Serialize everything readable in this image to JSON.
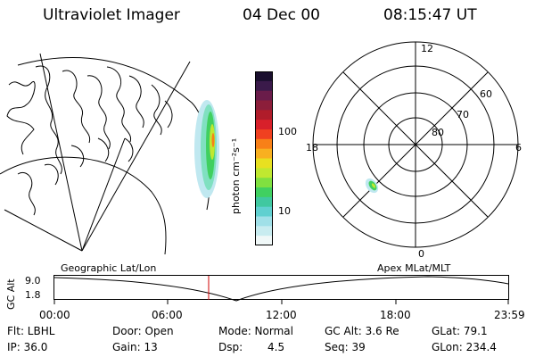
{
  "header": {
    "title": "Ultraviolet Imager",
    "date": "04 Dec 00",
    "time": "08:15:47 UT"
  },
  "colorbar": {
    "unit": "photon cm⁻²s⁻¹",
    "ticks": [
      "100",
      "10"
    ],
    "colors": [
      "#1a0f2e",
      "#3a1a4a",
      "#6a1c4a",
      "#8c1e3a",
      "#b01c2a",
      "#d8202a",
      "#f04020",
      "#f88018",
      "#f8b020",
      "#e8e020",
      "#c0e830",
      "#80e040",
      "#40d060",
      "#40c8a0",
      "#60d0d0",
      "#a0e0e8",
      "#c8ecf0",
      "#f0f8f8"
    ]
  },
  "polar": {
    "labels": {
      "top": "12",
      "bottom": "0",
      "left": "18",
      "right": "6"
    },
    "lat_labels": [
      "60",
      "70",
      "80"
    ]
  },
  "timeline": {
    "left_label": "Geographic Lat/Lon",
    "right_label": "Apex MLat/MLT",
    "yaxis_label": "GC Alt",
    "y_ticks": [
      "9.0",
      "1.8"
    ],
    "x_ticks": [
      "00:00",
      "06:00",
      "12:00",
      "18:00",
      "23:59"
    ]
  },
  "info": {
    "row1": {
      "flt": "Flt: LBHL",
      "door": "Door: Open",
      "mode": "Mode: Normal",
      "gcalt": "GC Alt: 3.6 Re",
      "glat": "GLat: 79.1"
    },
    "row2": {
      "ip": "IP: 36.0",
      "gain": "Gain: 13",
      "dsp_label": "Dsp:",
      "dsp_value": "4.5",
      "seq": "Seq: 39",
      "glon": "GLon: 234.4"
    }
  }
}
